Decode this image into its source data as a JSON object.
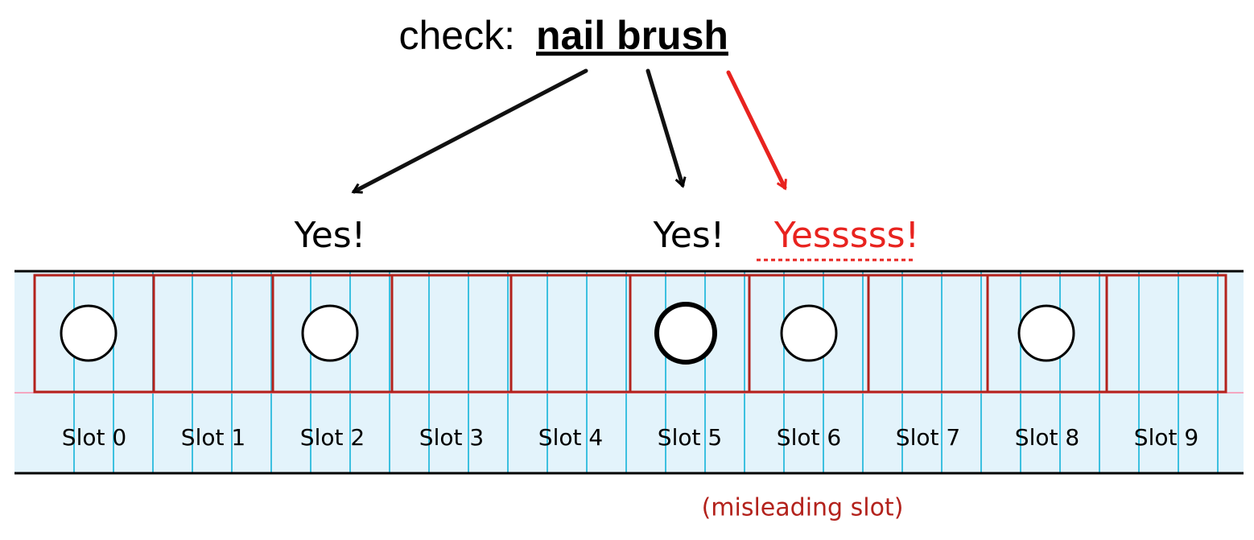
{
  "header": {
    "prefix": "check:",
    "item": "nail brush"
  },
  "answers": [
    "Yes!",
    "Yes!",
    "Yesssss!"
  ],
  "slots": [
    "Slot 0",
    "Slot 1",
    "Slot 2",
    "Slot 3",
    "Slot 4",
    "Slot 5",
    "Slot 6",
    "Slot 7",
    "Slot 8",
    "Slot 9"
  ],
  "note": "(misleading slot)"
}
